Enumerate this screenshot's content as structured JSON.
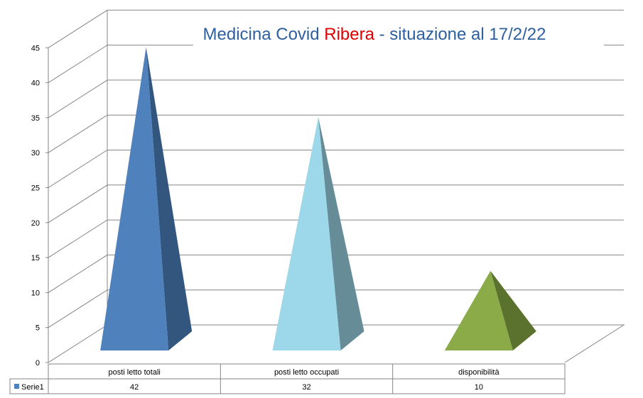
{
  "chart_data": {
    "type": "bar",
    "style": "3d-pyramid",
    "title": {
      "parts": [
        {
          "text": "Medicina Covid ",
          "color": "#2e5f9e"
        },
        {
          "text": "Ribera",
          "color": "#e00000"
        },
        {
          "text": " - situazione al 17/2/22",
          "color": "#2e5f9e"
        }
      ]
    },
    "categories": [
      "posti letto totali",
      "posti letto occupati",
      "disponibilità"
    ],
    "series": [
      {
        "name": "Serie1",
        "values": [
          42,
          32,
          10
        ],
        "colors": [
          "#4f81bd",
          "#9dd8ea",
          "#8aab47"
        ],
        "shade_colors": [
          "#33567f",
          "#668c98",
          "#5a722d"
        ]
      }
    ],
    "yticks": [
      0,
      5,
      10,
      15,
      20,
      25,
      30,
      35,
      40,
      45
    ],
    "ylim": [
      0,
      45
    ],
    "grid": true,
    "data_table": true,
    "legend_key_color": "#4f81bd"
  }
}
